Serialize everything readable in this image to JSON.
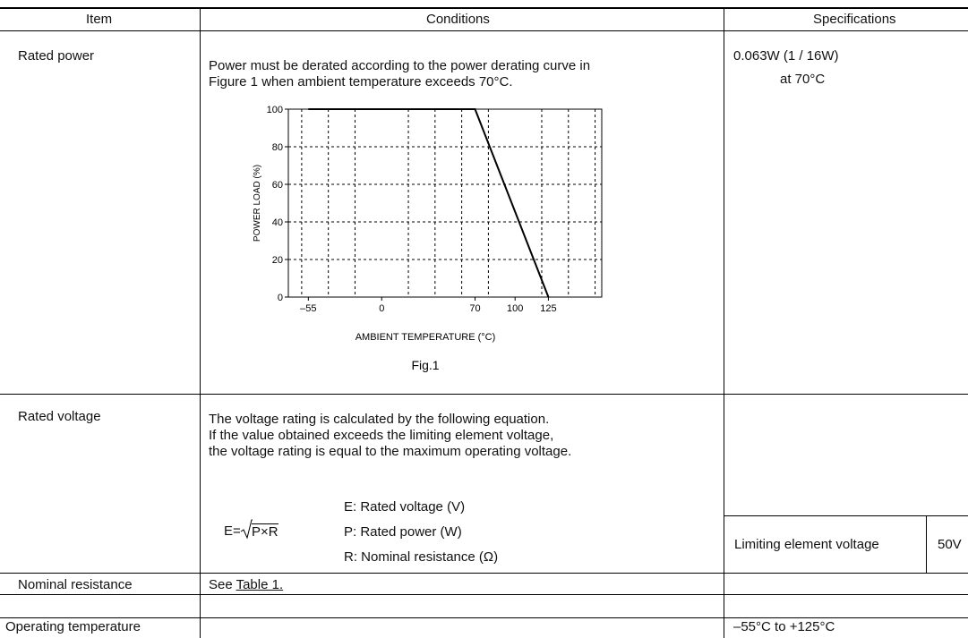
{
  "header": {
    "item": "Item",
    "conditions": "Conditions",
    "specifications": "Specifications"
  },
  "rows": {
    "rated_power": {
      "item": "Rated power",
      "condition_line1": "Power must be derated according to the power derating curve in",
      "condition_line2": "Figure 1 when ambient temperature exceeds 70°C.",
      "spec_line1": "0.063W (1 / 16W)",
      "spec_line2": "at 70°C"
    },
    "rated_voltage": {
      "item": "Rated voltage",
      "condition_line1": "The voltage rating is calculated by the following equation.",
      "condition_line2": "If the value obtained exceeds the limiting element voltage,",
      "condition_line3": "the voltage rating is equal to the maximum operating voltage.",
      "formula_lhs": "E=",
      "formula_radicand": "P×R",
      "legend_e": "E: Rated voltage (V)",
      "legend_p": "P: Rated power (W)",
      "legend_r": "R: Nominal resistance (Ω)",
      "limiting_label": "Limiting element voltage",
      "limiting_value": "50V"
    },
    "nominal_resistance": {
      "item": "Nominal resistance",
      "condition_prefix": "See ",
      "condition_link": "Table 1."
    },
    "operating_temperature": {
      "item": "Operating temperature",
      "spec": "–55°C to +125°C"
    }
  },
  "chart_data": {
    "type": "line",
    "title": "",
    "xlabel": "AMBIENT  TEMPERATURE (°C)",
    "ylabel": "POWER  LOAD (%)",
    "caption": "Fig.1",
    "x_tick_labels": [
      "–55",
      "0",
      "70",
      "100",
      "125"
    ],
    "x_ticks": [
      -55,
      0,
      70,
      100,
      125
    ],
    "y_ticks": [
      0,
      20,
      40,
      60,
      80,
      100
    ],
    "xlim": [
      -70,
      165
    ],
    "ylim": [
      0,
      100
    ],
    "grid": true,
    "series": [
      {
        "x": [
          -55,
          70,
          125
        ],
        "y": [
          100,
          100,
          0
        ]
      }
    ]
  }
}
